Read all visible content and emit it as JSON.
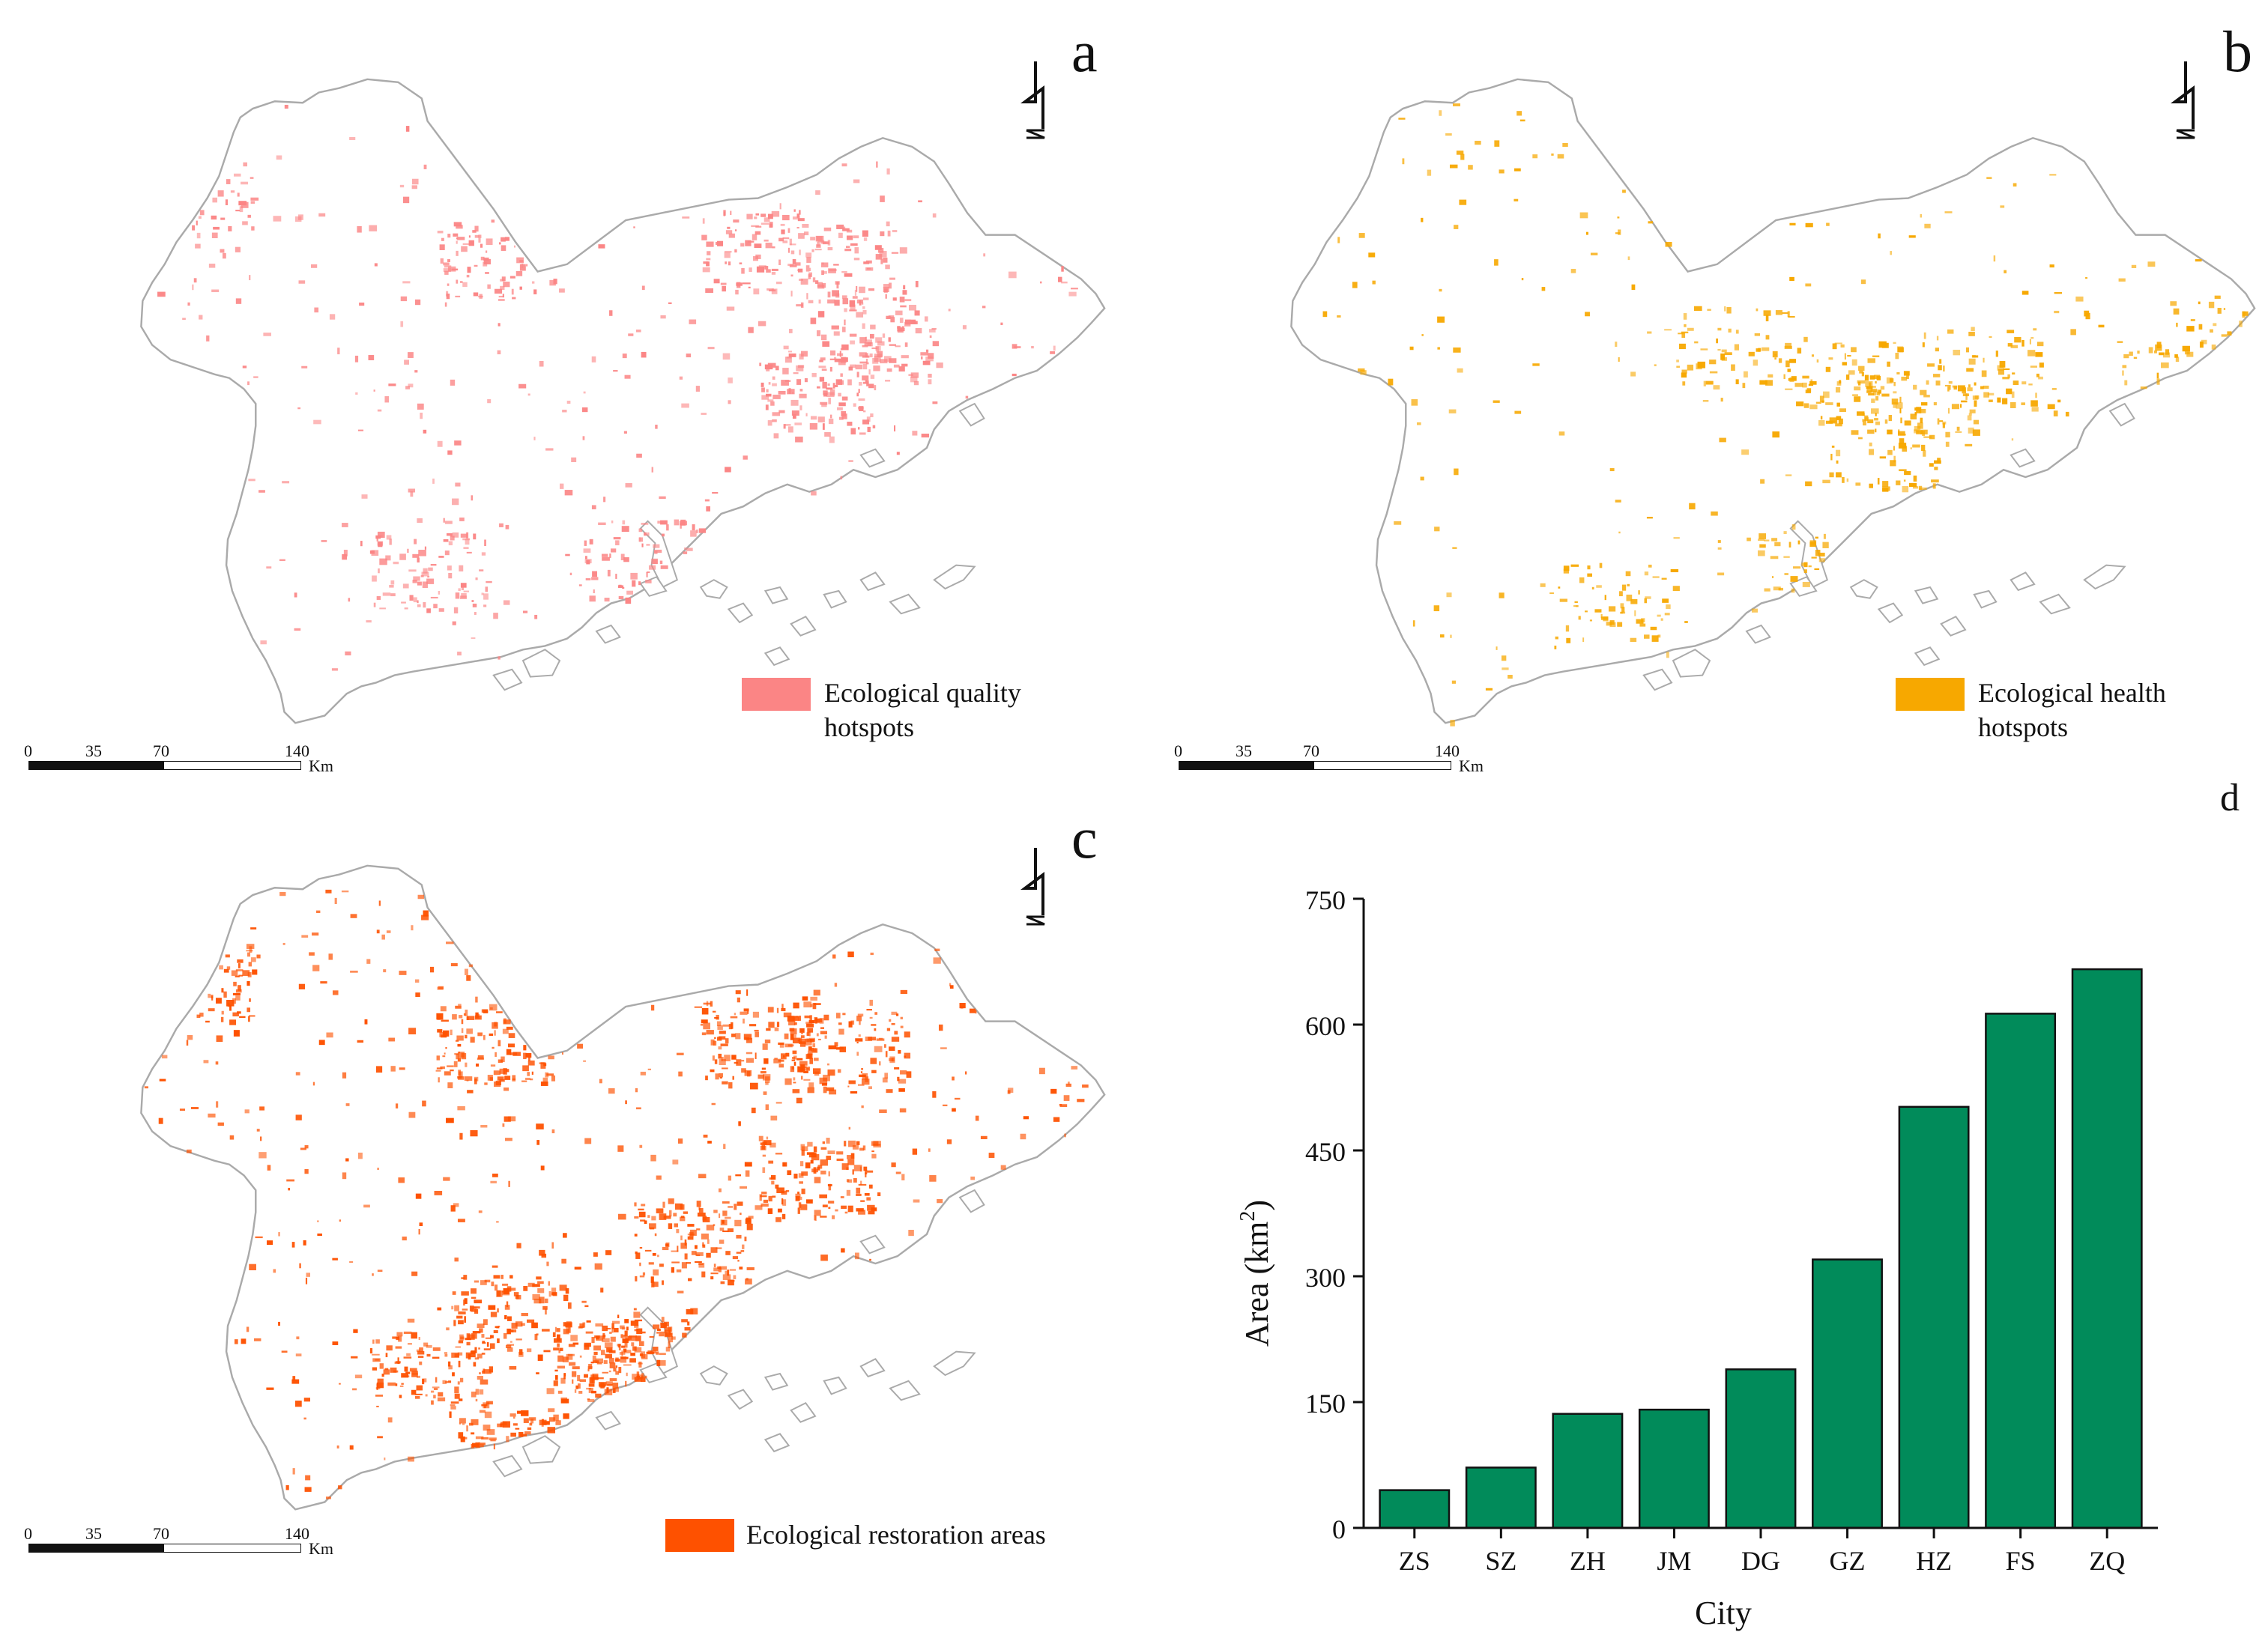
{
  "panels": [
    {
      "letter": "a",
      "legend": "Ecological quality\nhotspots",
      "color": "#fb8585"
    },
    {
      "letter": "b",
      "legend": "Ecological health\nhotspots",
      "color": "#f7a800"
    },
    {
      "letter": "c",
      "legend": "Ecological restoration areas",
      "color": "#fe5100"
    }
  ],
  "north_arrow": "north-arrow-icon",
  "scale": {
    "ticks": [
      "0",
      "35",
      "70",
      "140"
    ],
    "unit": "Km"
  },
  "panel_d_letter": "d",
  "outline_color": "#aaaaaa",
  "chart_data": {
    "type": "bar",
    "categories": [
      "ZS",
      "SZ",
      "ZH",
      "JM",
      "DG",
      "GZ",
      "HZ",
      "FS",
      "ZQ"
    ],
    "values": [
      45,
      72,
      136,
      141,
      189,
      320,
      502,
      613,
      666
    ],
    "xlabel": "City",
    "ylabel": "Area (km",
    "ylabel_sup": "2",
    "ylabel_close": ")",
    "yticks": [
      "0",
      "150",
      "300",
      "450",
      "600",
      "750"
    ],
    "ylim": [
      0,
      750
    ],
    "bar_color": "#018b5a",
    "grid": false
  }
}
